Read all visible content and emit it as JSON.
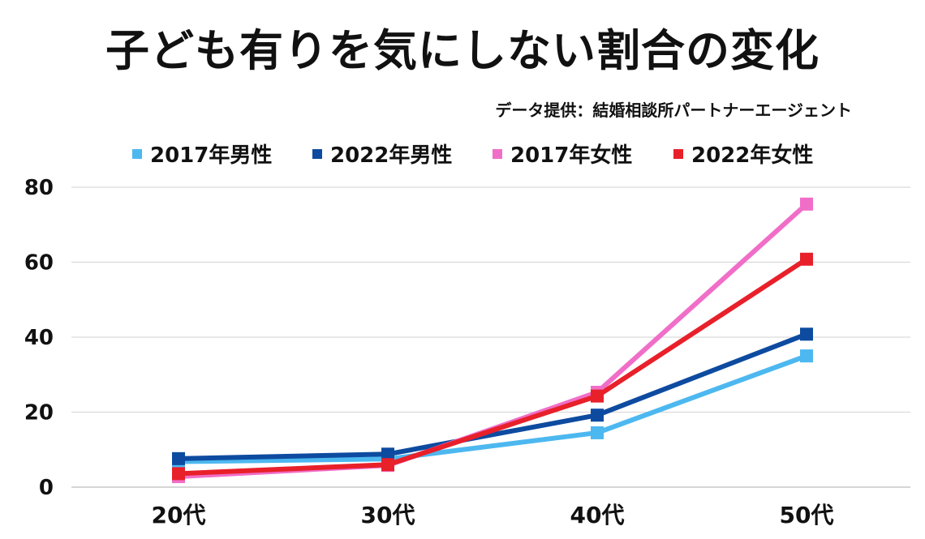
{
  "title": "子ども有りを気にしない割合の変化",
  "source": "データ提供：結婚相談所パートナーエージェント",
  "chart_data": {
    "type": "line",
    "categories": [
      "20代",
      "30代",
      "40代",
      "50代"
    ],
    "series": [
      {
        "name": "2017年男性",
        "color": "#4DB8F0",
        "values": [
          6.8,
          7.5,
          14.5,
          35.0
        ]
      },
      {
        "name": "2022年男性",
        "color": "#0D4BA0",
        "values": [
          7.6,
          8.8,
          19.2,
          40.8
        ]
      },
      {
        "name": "2017年女性",
        "color": "#F06EC8",
        "values": [
          2.8,
          5.8,
          25.3,
          75.5
        ]
      },
      {
        "name": "2022年女性",
        "color": "#E8202A",
        "values": [
          3.6,
          6.0,
          24.3,
          60.8
        ]
      }
    ],
    "yticks": [
      "0",
      "20",
      "40",
      "60",
      "80"
    ],
    "ylim": [
      0,
      80
    ],
    "grid": true,
    "legend": "top"
  }
}
